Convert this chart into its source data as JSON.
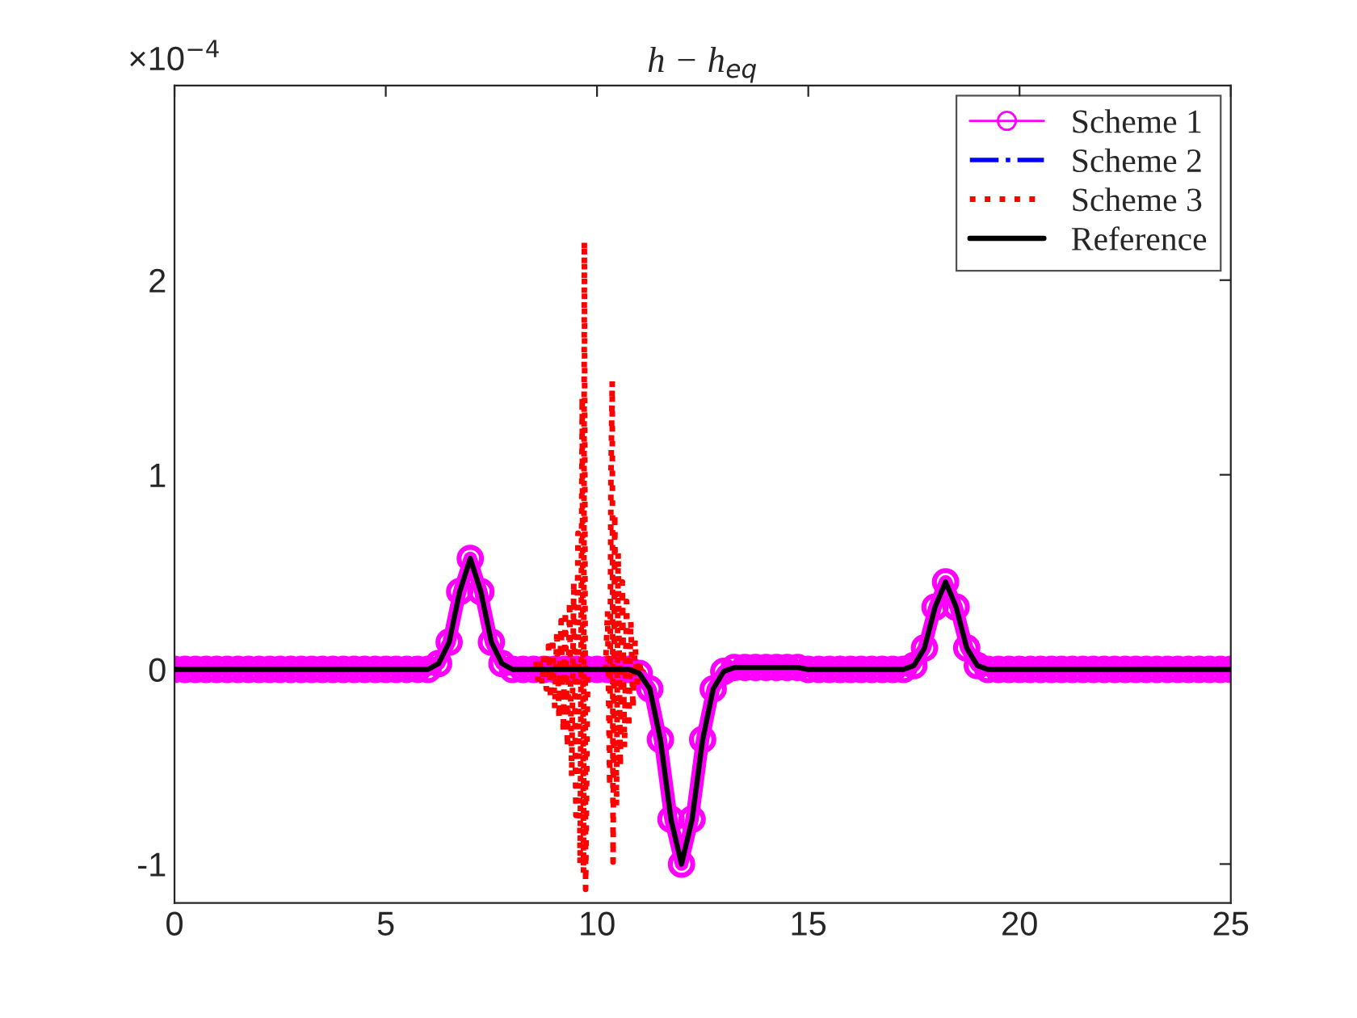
{
  "chart_data": {
    "type": "line",
    "title": "h − h$_{eq}$",
    "annotations": [
      "×10$^{−4}$"
    ],
    "x": [
      0,
      0.25,
      0.5,
      0.75,
      1,
      1.25,
      1.5,
      1.75,
      2,
      2.25,
      2.5,
      2.75,
      3,
      3.25,
      3.5,
      3.75,
      4,
      4.25,
      4.5,
      4.75,
      5,
      5.25,
      5.5,
      5.75,
      6,
      6.25,
      6.5,
      6.75,
      7,
      7.25,
      7.5,
      7.75,
      8,
      8.25,
      8.5,
      8.75,
      9,
      9.25,
      9.5,
      9.75,
      10,
      10.25,
      10.5,
      10.75,
      11,
      11.25,
      11.5,
      11.75,
      12,
      12.25,
      12.5,
      12.75,
      13,
      13.25,
      13.5,
      13.75,
      14,
      14.25,
      14.5,
      14.75,
      15,
      15.25,
      15.5,
      15.75,
      16,
      16.25,
      16.5,
      16.75,
      17,
      17.25,
      17.5,
      17.75,
      18,
      18.25,
      18.5,
      18.75,
      19,
      19.25,
      19.5,
      19.75,
      20,
      20.25,
      20.5,
      20.75,
      21,
      21.25,
      21.5,
      21.75,
      22,
      22.25,
      22.5,
      22.75,
      23,
      23.25,
      23.5,
      23.75,
      24,
      24.25,
      24.5,
      24.75,
      25
    ],
    "series": [
      {
        "name": "Scheme 1",
        "color": "#ff00ff",
        "marker": "circle",
        "line_style": "solid",
        "values": [
          0,
          0,
          0,
          0,
          0,
          0,
          0,
          0,
          0,
          0,
          0,
          0,
          0,
          0,
          0,
          0,
          0,
          0,
          0,
          0,
          0,
          0,
          0,
          0,
          0,
          0.03,
          0.14,
          0.4,
          0.57,
          0.4,
          0.14,
          0.03,
          0,
          0,
          0,
          0,
          0,
          0,
          0,
          0,
          0,
          0,
          0,
          0,
          -0.02,
          -0.1,
          -0.36,
          -0.77,
          -1.0,
          -0.77,
          -0.36,
          -0.1,
          -0.01,
          0.01,
          0.01,
          0.01,
          0.01,
          0.01,
          0.01,
          0.01,
          0,
          0,
          0,
          0,
          0,
          0,
          0,
          0,
          0,
          0,
          0.02,
          0.11,
          0.32,
          0.45,
          0.32,
          0.11,
          0.02,
          0,
          0,
          0,
          0,
          0,
          0,
          0,
          0,
          0,
          0,
          0,
          0,
          0,
          0,
          0,
          0,
          0,
          0,
          0,
          0,
          0,
          0,
          0,
          0
        ]
      },
      {
        "name": "Scheme 2",
        "color": "#0000ff",
        "marker": "none",
        "line_style": "dashdot",
        "values": [
          null,
          null,
          null,
          null,
          null,
          null,
          null,
          null,
          null,
          null,
          null,
          null,
          null,
          null,
          null,
          null,
          null,
          null,
          null,
          null,
          null,
          null,
          null,
          null,
          null,
          null,
          null,
          null,
          null,
          null,
          null,
          null,
          null,
          null,
          null,
          null,
          null,
          null,
          null,
          null,
          null,
          null,
          null,
          null,
          null,
          null,
          null,
          null,
          null,
          null,
          null,
          null,
          null,
          null,
          null,
          null,
          null,
          null,
          null,
          null,
          null,
          null,
          null,
          null,
          null,
          null,
          null,
          null,
          null,
          null,
          null,
          null,
          null,
          null,
          null,
          null,
          null,
          null,
          null,
          null,
          null,
          null,
          null,
          null,
          null,
          null,
          null,
          null,
          null,
          null,
          null,
          null,
          null,
          null,
          null,
          null,
          null,
          null,
          null,
          null,
          null
        ]
      },
      {
        "name": "Scheme 3",
        "color": "#ff0000",
        "marker": "none",
        "line_style": "dotted",
        "x": [
          8.55,
          8.6,
          8.65,
          8.7,
          8.75,
          8.8,
          8.85,
          8.9,
          8.95,
          9,
          9.05,
          9.1,
          9.15,
          9.2,
          9.25,
          9.3,
          9.35,
          9.4,
          9.45,
          9.5,
          9.55,
          9.6,
          9.65,
          9.68,
          9.7,
          9.73,
          9.78,
          10,
          10.2,
          10.25,
          10.3,
          10.33,
          10.36,
          10.38,
          10.42,
          10.46,
          10.5,
          10.55,
          10.6,
          10.65,
          10.7,
          10.75,
          10.8,
          10.85,
          10.9,
          10.95,
          11,
          11.05,
          11.1
        ],
        "values": [
          0.04,
          -0.05,
          0.06,
          -0.08,
          0.09,
          -0.1,
          0.12,
          -0.15,
          0.16,
          -0.2,
          0.2,
          -0.25,
          0.25,
          -0.32,
          0.3,
          -0.4,
          0.35,
          -0.55,
          0.45,
          -0.75,
          0.7,
          -1.0,
          1.4,
          -1.05,
          2.2,
          -1.13,
          0,
          0,
          0,
          0.3,
          -0.6,
          1.0,
          1.48,
          -0.99,
          0.8,
          -0.7,
          0.6,
          -0.5,
          0.45,
          -0.4,
          0.35,
          -0.3,
          0.25,
          -0.2,
          0.15,
          -0.1,
          0.05,
          -0.03,
          0
        ]
      },
      {
        "name": "Reference",
        "color": "#000000",
        "marker": "none",
        "line_style": "solid",
        "values": [
          0,
          0,
          0,
          0,
          0,
          0,
          0,
          0,
          0,
          0,
          0,
          0,
          0,
          0,
          0,
          0,
          0,
          0,
          0,
          0,
          0,
          0,
          0,
          0,
          0,
          0.03,
          0.14,
          0.4,
          0.57,
          0.4,
          0.14,
          0.03,
          0,
          0,
          0,
          0,
          0,
          0,
          0,
          0,
          0,
          0,
          0,
          0,
          -0.02,
          -0.1,
          -0.36,
          -0.77,
          -1.0,
          -0.77,
          -0.36,
          -0.1,
          -0.01,
          0.01,
          0.01,
          0.01,
          0.01,
          0.01,
          0.01,
          0.01,
          0,
          0,
          0,
          0,
          0,
          0,
          0,
          0,
          0,
          0,
          0.02,
          0.11,
          0.32,
          0.45,
          0.32,
          0.11,
          0.02,
          0,
          0,
          0,
          0,
          0,
          0,
          0,
          0,
          0,
          0,
          0,
          0,
          0,
          0,
          0,
          0,
          0,
          0,
          0,
          0,
          0,
          0,
          0,
          0
        ]
      }
    ],
    "xlim": [
      0,
      25
    ],
    "xticks": [
      0,
      5,
      10,
      15,
      20,
      25
    ],
    "ylim": [
      -1.2,
      3
    ],
    "yticks": [
      -1,
      0,
      1,
      2
    ],
    "grid": false,
    "legend": "top right"
  }
}
